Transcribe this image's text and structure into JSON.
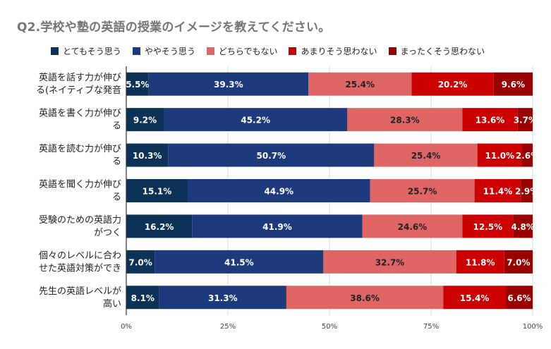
{
  "chart_data": {
    "type": "bar",
    "orientation": "horizontal",
    "stacked": true,
    "percent_stacked": true,
    "title": "Q2.学校や塾の英語の授業のイメージを教えてください。",
    "xlabel": "",
    "ylabel": "",
    "xlim": [
      0,
      100
    ],
    "x_ticks": [
      "0%",
      "25%",
      "50%",
      "75%",
      "100%"
    ],
    "legend_position": "top",
    "categories": [
      [
        "英語を話す力が伸び",
        "る(ネイティブな発音"
      ],
      [
        "英語を書く力が伸び",
        "る"
      ],
      [
        "英語を読む力が伸び",
        "る"
      ],
      [
        "英語を聞く力が伸び",
        "る"
      ],
      [
        "受験のための英語力",
        "がつく"
      ],
      [
        "個々のレベルに合わ",
        "せた英語対策ができ"
      ],
      [
        "先生の英語レベルが",
        "高い"
      ]
    ],
    "series": [
      {
        "name": "とてもそう思う",
        "color": "#0d3257",
        "label_color": "#ffffff",
        "values": [
          5.5,
          9.2,
          10.3,
          15.1,
          16.2,
          7.0,
          8.1
        ],
        "labels": [
          "5.5%",
          "9.2%",
          "10.3%",
          "15.1%",
          "16.2%",
          "7.0%",
          "8.1%"
        ]
      },
      {
        "name": "ややそう思う",
        "color": "#1d3b7c",
        "label_color": "#ffffff",
        "values": [
          39.3,
          45.2,
          50.7,
          44.9,
          41.9,
          41.5,
          31.3
        ],
        "labels": [
          "39.3%",
          "45.2%",
          "50.7%",
          "44.9%",
          "41.9%",
          "41.5%",
          "31.3%"
        ]
      },
      {
        "name": "どちらでもない",
        "color": "#e06666",
        "label_color": "#222222",
        "values": [
          25.4,
          28.3,
          25.4,
          25.7,
          24.6,
          32.7,
          38.6
        ],
        "labels": [
          "25.4%",
          "28.3%",
          "25.4%",
          "25.7%",
          "24.6%",
          "32.7%",
          "38.6%"
        ]
      },
      {
        "name": "あまりそう思わない",
        "color": "#cc0000",
        "label_color": "#ffffff",
        "values": [
          20.2,
          13.6,
          11.0,
          11.4,
          12.5,
          11.8,
          15.4
        ],
        "labels": [
          "20.2%",
          "13.6%",
          "11.0%",
          "11.4%",
          "12.5%",
          "11.8%",
          "15.4%"
        ]
      },
      {
        "name": "まったくそう思わない",
        "color": "#990000",
        "label_color": "#ffffff",
        "values": [
          9.6,
          3.7,
          2.6,
          2.9,
          4.8,
          7.0,
          6.6
        ],
        "labels": [
          "9.6%",
          "3.7%",
          "2.6%",
          "2.9%",
          "4.8%",
          "7.0%",
          "6.6%"
        ]
      }
    ]
  }
}
